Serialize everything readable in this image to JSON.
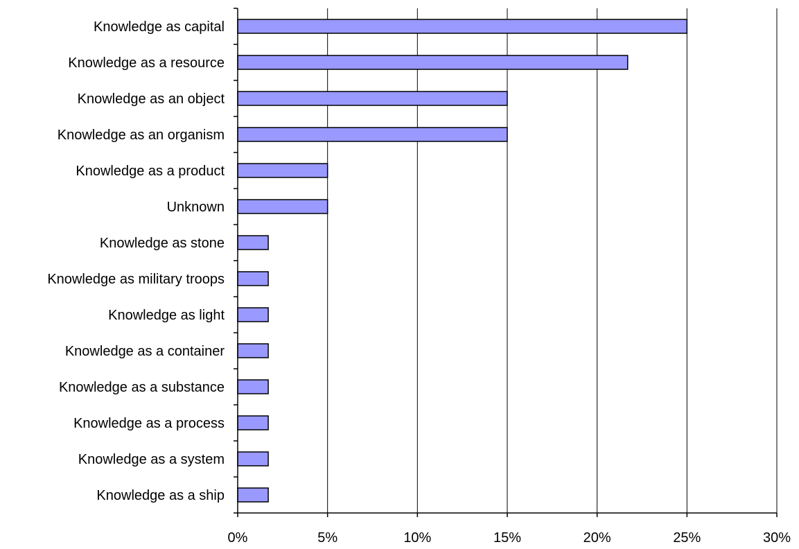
{
  "chart_data": {
    "type": "bar",
    "orientation": "horizontal",
    "categories": [
      "Knowledge as capital",
      "Knowledge as a resource",
      "Knowledge as an object",
      "Knowledge as an organism",
      "Knowledge as a product",
      "Unknown",
      "Knowledge as stone",
      "Knowledge as military troops",
      "Knowledge as light",
      "Knowledge as a container",
      "Knowledge as a substance",
      "Knowledge as a process",
      "Knowledge as a system",
      "Knowledge as a ship"
    ],
    "values": [
      25,
      21.7,
      15,
      15,
      5,
      5,
      1.7,
      1.7,
      1.7,
      1.7,
      1.7,
      1.7,
      1.7,
      1.7
    ],
    "xlim": [
      0,
      30
    ],
    "x_ticks": [
      0,
      5,
      10,
      15,
      20,
      25,
      30
    ],
    "x_tick_labels": [
      "0%",
      "5%",
      "10%",
      "15%",
      "20%",
      "25%",
      "30%"
    ],
    "title": "",
    "xlabel": "",
    "ylabel": "",
    "grid": "vertical",
    "legend": "none",
    "colors": {
      "bar_fill": "#9999ff",
      "bar_stroke": "#000000",
      "grid": "#000000",
      "axis": "#000000"
    }
  }
}
